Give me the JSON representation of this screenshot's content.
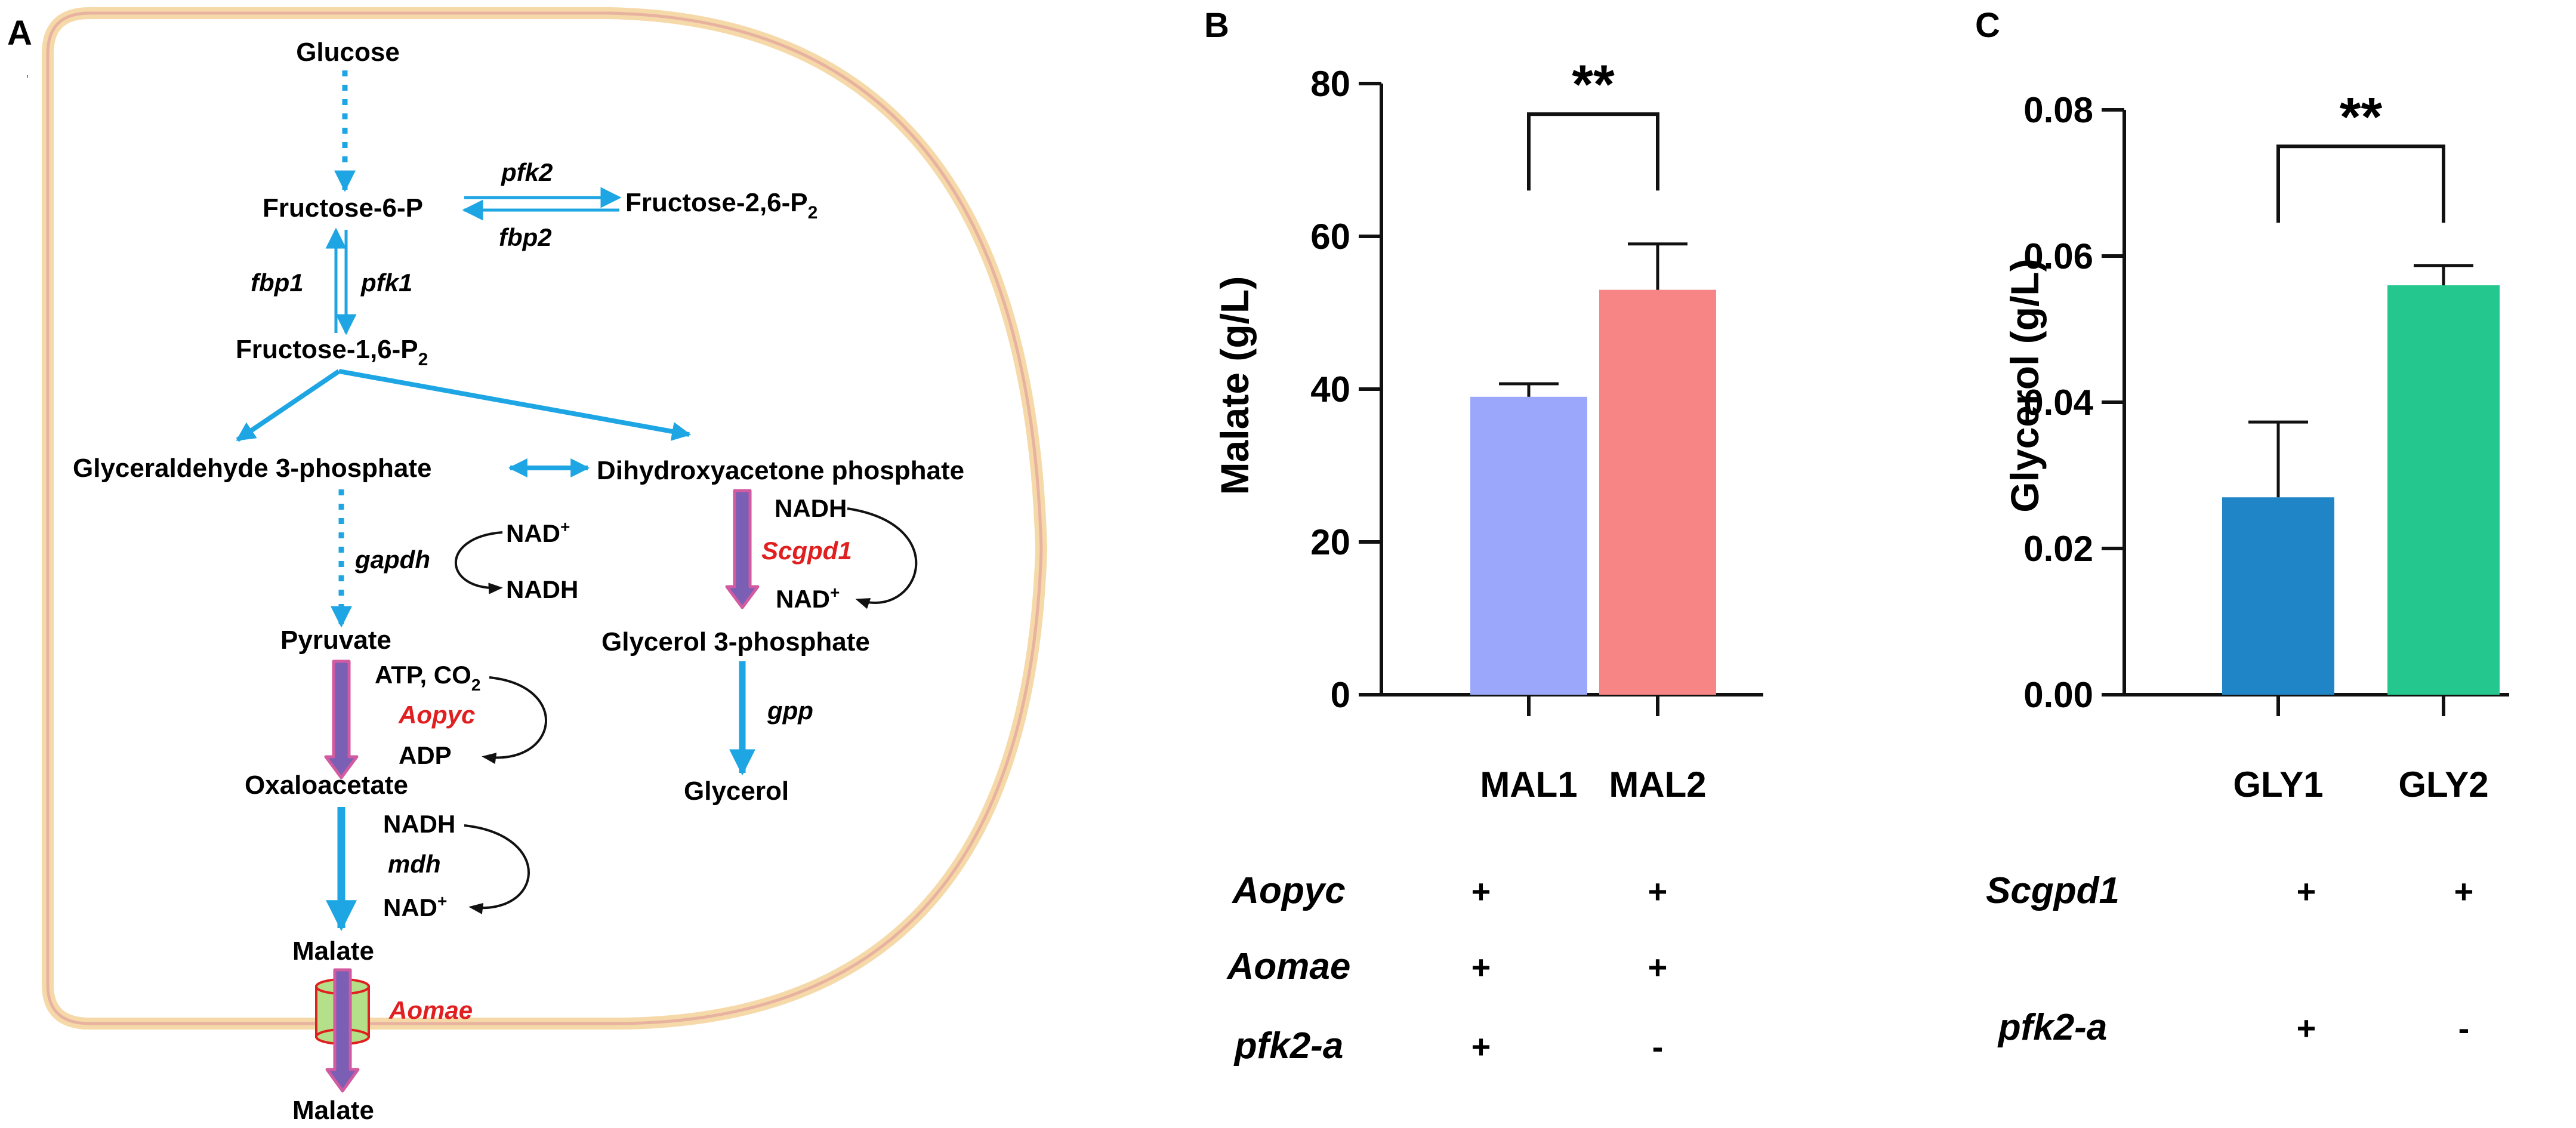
{
  "panel_labels": {
    "a": "A",
    "b": "B",
    "c": "C"
  },
  "pathway": {
    "glucose": "Glucose",
    "f6p": "Fructose-6-P",
    "f26p2_base": "Fructose-2,6-P",
    "f16p2_base": "Fructose-1,6-P",
    "sub2": "2",
    "pfk2": "pfk2",
    "fbp2": "fbp2",
    "fbp1": "fbp1",
    "pfk1": "pfk1",
    "g3p": "Glyceraldehyde 3-phosphate",
    "dhap": "Dihydroxyacetone phosphate",
    "gapdh": "gapdh",
    "nad_plus_1": "NAD",
    "nadh_1": "NADH",
    "nadh_2": "NADH",
    "scgpd1": "Scgpd1",
    "nad_plus_2": "NAD",
    "pyruvate": "Pyruvate",
    "glycerol3p": "Glycerol 3-phosphate",
    "atp_co2_base": "ATP, CO",
    "aopyc": "Aopyc",
    "adp": "ADP",
    "gpp": "gpp",
    "oxaloacetate": "Oxaloacetate",
    "glycerol": "Glycerol",
    "nadh_3": "NADH",
    "mdh": "mdh",
    "nad_plus_3": "NAD",
    "malate_in": "Malate",
    "aomae": "Aomae",
    "malate_out": "Malate",
    "plus_sup": "+"
  },
  "colors": {
    "flux_arrow": "#1ea5e3",
    "engineered_fill": "#7b5fb5",
    "engineered_edge": "#d25aa0",
    "red_gene": "#e02020",
    "membrane_outer": "#f6d9a8",
    "membrane_inner": "#e8b2a0",
    "transporter": "#b5e08a",
    "mal1": "#9aa7fb",
    "mal2": "#f88585",
    "gly1": "#1f85c7",
    "gly2": "#24c78e"
  },
  "chart_data": [
    {
      "type": "bar",
      "panel": "B",
      "categories": [
        "MAL1",
        "MAL2"
      ],
      "values": [
        39,
        53
      ],
      "errors": [
        1.7,
        6
      ],
      "ylabel": "Malate (g/L)",
      "ylim": [
        0,
        80
      ],
      "yticks": [
        0,
        20,
        40,
        60,
        80
      ],
      "ytick_labels": [
        "0",
        "20",
        "40",
        "60",
        "80"
      ],
      "significance": "**",
      "bracket_value": 76,
      "genotype_rows": [
        {
          "gene": "Aopyc",
          "marks": [
            "+",
            "+"
          ]
        },
        {
          "gene": "Aomae",
          "marks": [
            "+",
            "+"
          ]
        },
        {
          "gene": "pfk2-a",
          "marks": [
            "+",
            "-"
          ]
        }
      ]
    },
    {
      "type": "bar",
      "panel": "C",
      "categories": [
        "GLY1",
        "GLY2"
      ],
      "values": [
        0.027,
        0.056
      ],
      "errors": [
        0.0103,
        0.0027
      ],
      "ylabel": "Glycerol (g/L)",
      "ylim": [
        0,
        0.08
      ],
      "yticks": [
        0,
        0.02,
        0.04,
        0.06,
        0.08
      ],
      "ytick_labels": [
        "0.00",
        "0.02",
        "0.04",
        "0.06",
        "0.08"
      ],
      "significance": "**",
      "bracket_value": 0.075,
      "genotype_rows": [
        {
          "gene": "Scgpd1",
          "marks": [
            "+",
            "+"
          ]
        },
        {
          "gene": "pfk2-a",
          "marks": [
            "+",
            "-"
          ]
        }
      ]
    }
  ]
}
